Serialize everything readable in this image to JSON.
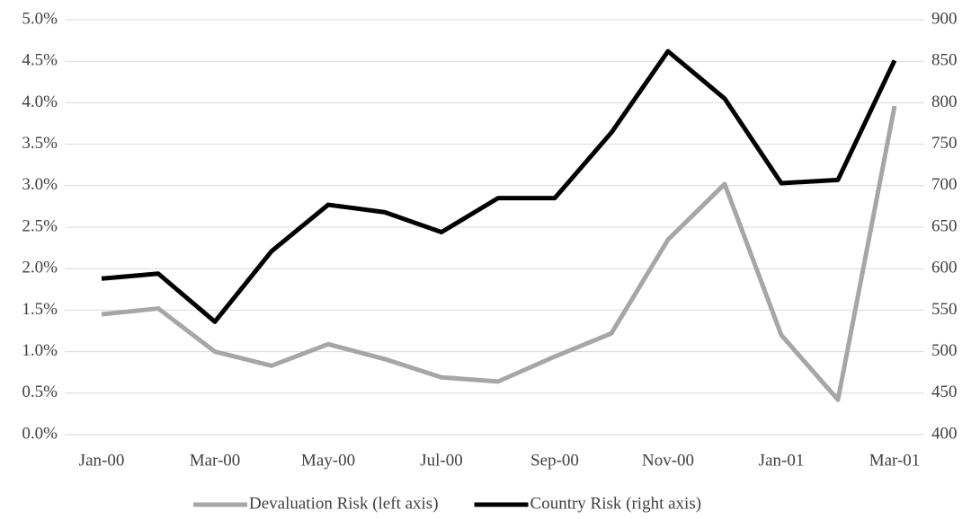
{
  "chart_data": {
    "type": "line",
    "categories": [
      "Jan-00",
      null,
      "Mar-00",
      null,
      "May-00",
      null,
      "Jul-00",
      null,
      "Sep-00",
      null,
      "Nov-00",
      null,
      "Jan-01",
      null,
      "Mar-01"
    ],
    "series": [
      {
        "name": "Devaluation Risk (left axis)",
        "color": "#a6a6a6",
        "axis": "y",
        "values": [
          1.45,
          1.52,
          1.0,
          0.83,
          1.09,
          0.91,
          0.69,
          0.64,
          0.94,
          1.22,
          2.35,
          3.02,
          1.2,
          0.42,
          3.96
        ]
      },
      {
        "name": "Country Risk (right axis)",
        "color": "#000000",
        "axis": "y2",
        "values": [
          588,
          594,
          536,
          621,
          677,
          668,
          644,
          685,
          685,
          764,
          862,
          805,
          703,
          707,
          851
        ]
      }
    ],
    "ylim": [
      0,
      5
    ],
    "yticks": [
      {
        "value": 0,
        "label": "0.0%"
      },
      {
        "value": 0.5,
        "label": "0.5%"
      },
      {
        "value": 1,
        "label": "1.0%"
      },
      {
        "value": 1.5,
        "label": "1.5%"
      },
      {
        "value": 2,
        "label": "2.0%"
      },
      {
        "value": 2.5,
        "label": "2.5%"
      },
      {
        "value": 3,
        "label": "3.0%"
      },
      {
        "value": 3.5,
        "label": "3.5%"
      },
      {
        "value": 4,
        "label": "4.0%"
      },
      {
        "value": 4.5,
        "label": "4.5%"
      },
      {
        "value": 5,
        "label": "5.0%"
      }
    ],
    "y2lim": [
      400,
      900
    ],
    "y2ticks": [
      400,
      450,
      500,
      550,
      600,
      650,
      700,
      750,
      800,
      850,
      900
    ],
    "grid": true,
    "legend": "bottom"
  }
}
